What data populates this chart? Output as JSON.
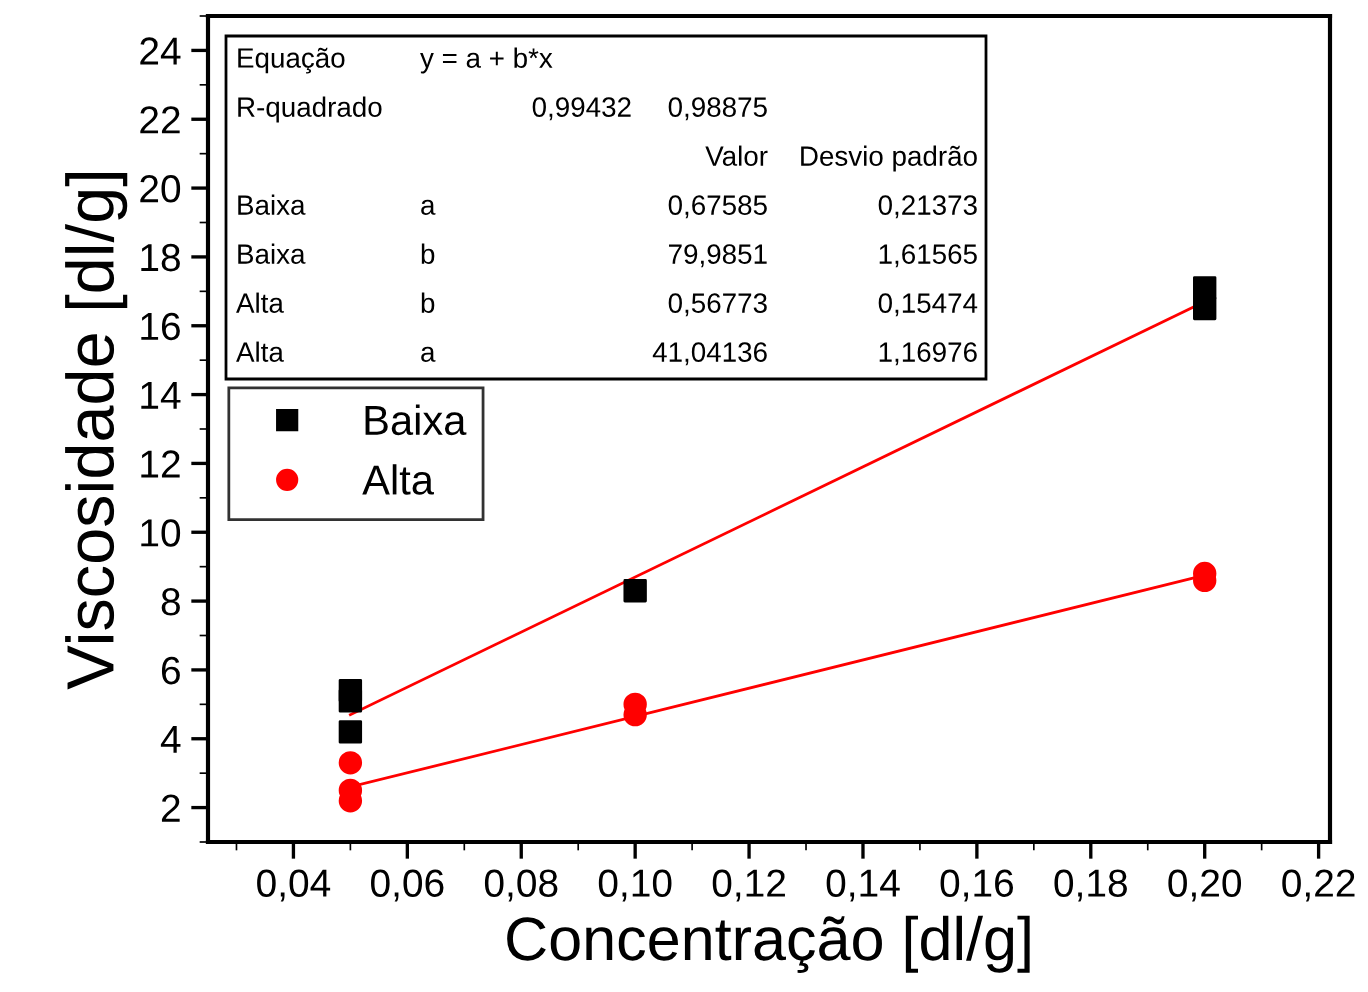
{
  "chart_data": {
    "type": "scatter",
    "xlabel": "Concentração [dl/g]",
    "ylabel": "Viscosidade [dl/g]",
    "xlim": [
      0.025,
      0.222
    ],
    "xticks": [
      {
        "value": 0.04,
        "label": "0,04"
      },
      {
        "value": 0.06,
        "label": "0,06"
      },
      {
        "value": 0.08,
        "label": "0,08"
      },
      {
        "value": 0.1,
        "label": "0,10"
      },
      {
        "value": 0.12,
        "label": "0,12"
      },
      {
        "value": 0.14,
        "label": "0,14"
      },
      {
        "value": 0.16,
        "label": "0,16"
      },
      {
        "value": 0.18,
        "label": "0,18"
      },
      {
        "value": 0.2,
        "label": "0,20"
      },
      {
        "value": 0.22,
        "label": "0,22"
      }
    ],
    "ylim": [
      1,
      25
    ],
    "yticks": [
      2,
      4,
      6,
      8,
      10,
      12,
      14,
      16,
      18,
      20,
      22,
      24
    ],
    "grid": false,
    "legend": "left",
    "series": [
      {
        "name": "Baixa",
        "color": "#000000",
        "marker": "square",
        "x": [
          0.05,
          0.05,
          0.05,
          0.1,
          0.2,
          0.2
        ],
        "values": [
          5.4,
          5.1,
          4.2,
          8.3,
          17.1,
          16.5
        ]
      },
      {
        "name": "Alta",
        "color": "#ff0000",
        "marker": "circle",
        "x": [
          0.05,
          0.05,
          0.05,
          0.1,
          0.1,
          0.2,
          0.2
        ],
        "values": [
          3.3,
          2.5,
          2.2,
          5.0,
          4.7,
          8.8,
          8.6
        ]
      },
      {
        "type": "line",
        "color": "#ff0000",
        "x": [
          0.05,
          0.2
        ],
        "values": [
          4.7,
          16.7
        ]
      },
      {
        "type": "line",
        "color": "#ff0000",
        "x": [
          0.05,
          0.2
        ],
        "values": [
          2.6,
          8.75
        ]
      }
    ],
    "annotations": [
      "Equação",
      "y = a + b*x",
      null,
      null,
      "R-quadrado",
      "0,99432",
      "0,98875",
      null,
      null,
      null,
      "Valor",
      "Desvio padrão",
      "Baixa",
      "a",
      "0,67585",
      "0,21373",
      "Baixa",
      "b",
      "79,9851",
      "1,61565",
      "Alta",
      "b",
      "0,56773",
      "0,15474",
      "Alta",
      "a",
      "41,04136",
      "1,16976"
    ]
  }
}
